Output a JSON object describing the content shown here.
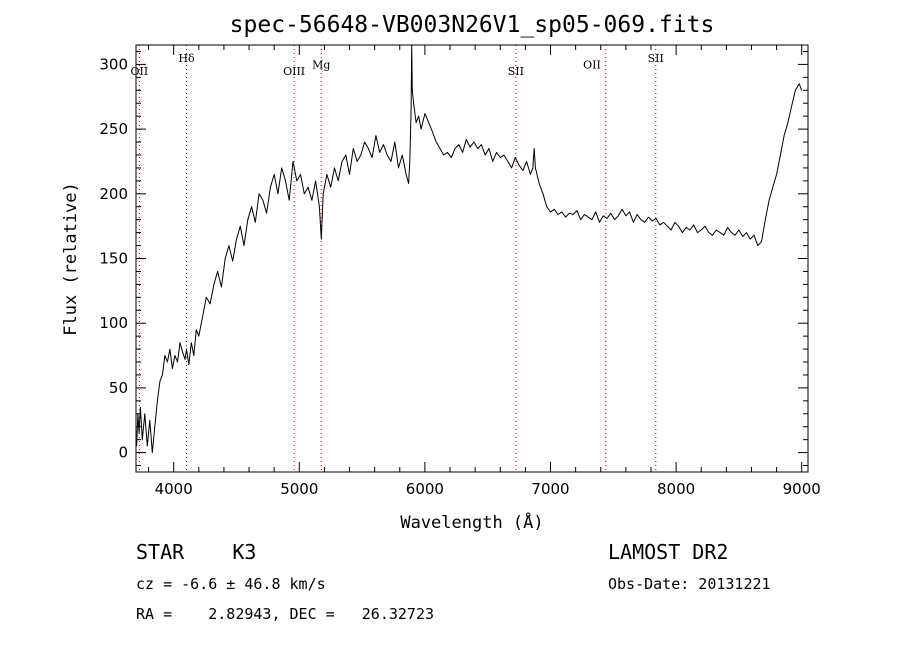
{
  "chart_data": {
    "type": "line",
    "title": "spec-56648-VB003N26V1_sp05-069.fits",
    "xlabel": "Wavelength (Å)",
    "ylabel": "Flux (relative)",
    "xlim": [
      3700,
      9050
    ],
    "ylim": [
      -15,
      315
    ],
    "x_ticks": [
      {
        "value": 4000,
        "label": "4000"
      },
      {
        "value": 5000,
        "label": "5000"
      },
      {
        "value": 6000,
        "label": "6000"
      },
      {
        "value": 7000,
        "label": "7000"
      },
      {
        "value": 8000,
        "label": "8000"
      },
      {
        "value": 9000,
        "label": "9000"
      }
    ],
    "y_ticks": [
      {
        "value": 0,
        "label": "0"
      },
      {
        "value": 50,
        "label": "50"
      },
      {
        "value": 100,
        "label": "100"
      },
      {
        "value": 150,
        "label": "150"
      },
      {
        "value": 200,
        "label": "200"
      },
      {
        "value": 250,
        "label": "250"
      },
      {
        "value": 300,
        "label": "300"
      }
    ],
    "x_minor_step": 200,
    "y_minor_step": 10,
    "grid": false,
    "legend": "none",
    "line_color": "#000000",
    "marker_color": "#cc0000",
    "spectral_lines": [
      {
        "label": "OII",
        "x": 3727,
        "row": 2
      },
      {
        "label": "Hδ",
        "x": 4102,
        "row": 1
      },
      {
        "label": "OIII",
        "x": 4959,
        "row": 2
      },
      {
        "label": "Mg",
        "x": 5175,
        "row": 1.5
      },
      {
        "label": "SII",
        "x": 6724,
        "row": 2
      },
      {
        "label": "OII",
        "x": 7330,
        "row": 1.5,
        "line_x": 7440
      },
      {
        "label": "SII",
        "x": 7838,
        "row": 1
      }
    ],
    "series": [
      {
        "x": [
          3705,
          3715,
          3725,
          3735,
          3750,
          3770,
          3790,
          3810,
          3830,
          3850,
          3870,
          3890,
          3910,
          3930,
          3950,
          3970,
          3990,
          4010,
          4030,
          4050,
          4070,
          4090,
          4102,
          4120,
          4140,
          4160,
          4180,
          4200,
          4230,
          4260,
          4290,
          4320,
          4350,
          4380,
          4410,
          4440,
          4470,
          4500,
          4530,
          4560,
          4590,
          4620,
          4650,
          4680,
          4710,
          4740,
          4770,
          4800,
          4830,
          4860,
          4890,
          4920,
          4950,
          4980,
          5010,
          5040,
          5070,
          5100,
          5130,
          5160,
          5175,
          5190,
          5220,
          5250,
          5280,
          5310,
          5340,
          5370,
          5400,
          5430,
          5460,
          5490,
          5520,
          5550,
          5580,
          5610,
          5640,
          5670,
          5700,
          5730,
          5760,
          5790,
          5820,
          5850,
          5870,
          5880,
          5890,
          5895,
          5900,
          5910,
          5930,
          5950,
          5970,
          6000,
          6030,
          6060,
          6090,
          6120,
          6150,
          6180,
          6210,
          6240,
          6270,
          6300,
          6330,
          6360,
          6390,
          6420,
          6450,
          6480,
          6510,
          6540,
          6570,
          6600,
          6630,
          6660,
          6690,
          6720,
          6750,
          6780,
          6810,
          6840,
          6860,
          6865,
          6870,
          6880,
          6910,
          6940,
          6970,
          7000,
          7030,
          7060,
          7090,
          7120,
          7150,
          7180,
          7210,
          7240,
          7270,
          7300,
          7330,
          7360,
          7390,
          7420,
          7450,
          7480,
          7510,
          7540,
          7570,
          7600,
          7630,
          7660,
          7690,
          7720,
          7750,
          7780,
          7810,
          7840,
          7870,
          7900,
          7930,
          7960,
          7990,
          8020,
          8050,
          8080,
          8110,
          8140,
          8170,
          8200,
          8230,
          8260,
          8290,
          8320,
          8350,
          8380,
          8410,
          8440,
          8470,
          8500,
          8530,
          8560,
          8590,
          8620,
          8650,
          8680,
          8710,
          8740,
          8770,
          8800,
          8830,
          8860,
          8890,
          8920,
          8950,
          8980,
          9000
        ],
        "y": [
          5,
          30,
          15,
          35,
          10,
          30,
          5,
          25,
          0,
          20,
          40,
          55,
          60,
          75,
          70,
          80,
          65,
          75,
          70,
          85,
          78,
          72,
          80,
          68,
          85,
          75,
          95,
          90,
          105,
          120,
          115,
          130,
          140,
          128,
          150,
          160,
          148,
          165,
          175,
          160,
          180,
          190,
          178,
          200,
          195,
          185,
          205,
          215,
          200,
          220,
          210,
          195,
          225,
          210,
          215,
          200,
          205,
          195,
          210,
          190,
          165,
          200,
          215,
          205,
          220,
          210,
          225,
          230,
          215,
          235,
          225,
          230,
          240,
          235,
          228,
          245,
          232,
          238,
          230,
          225,
          240,
          220,
          230,
          215,
          208,
          225,
          265,
          320,
          280,
          270,
          255,
          260,
          250,
          262,
          255,
          248,
          240,
          235,
          230,
          232,
          228,
          235,
          238,
          232,
          242,
          236,
          240,
          235,
          238,
          230,
          235,
          225,
          232,
          228,
          230,
          225,
          220,
          228,
          222,
          218,
          225,
          215,
          220,
          228,
          235,
          220,
          208,
          200,
          190,
          186,
          188,
          184,
          186,
          182,
          185,
          184,
          187,
          180,
          184,
          182,
          180,
          186,
          178,
          183,
          181,
          185,
          180,
          183,
          188,
          183,
          186,
          178,
          184,
          180,
          178,
          182,
          179,
          181,
          176,
          178,
          175,
          172,
          178,
          175,
          170,
          174,
          172,
          176,
          170,
          172,
          175,
          170,
          168,
          172,
          170,
          168,
          174,
          170,
          168,
          172,
          167,
          170,
          165,
          168,
          160,
          163,
          180,
          195,
          205,
          215,
          230,
          245,
          255,
          268,
          280,
          285,
          280
        ]
      }
    ]
  },
  "footer": {
    "object": "STAR    K3",
    "velocity": "cz = -6.6 ± 46.8 km/s",
    "coords": "RA =    2.82943, DEC =   26.32723",
    "survey": "LAMOST DR2",
    "obs_date": "Obs-Date: 20131221"
  }
}
